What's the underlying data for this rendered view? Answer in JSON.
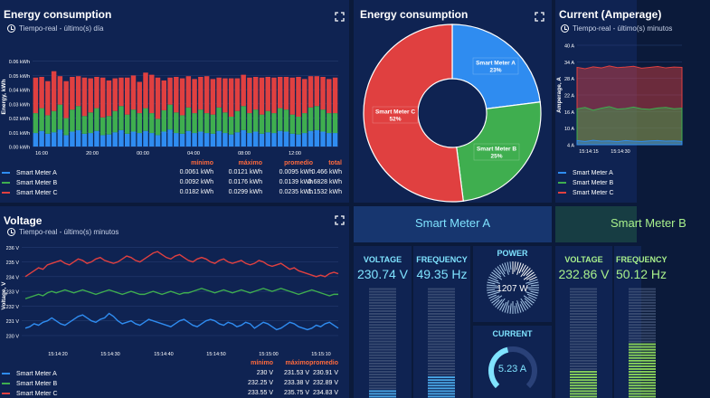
{
  "colors": {
    "meter_a": "#2f8cf0",
    "meter_b": "#3fae4f",
    "meter_c": "#e04040",
    "stat_header": "#ff6a3d",
    "accent_cyan": "#7fe3ff",
    "accent_green": "#a8f08c"
  },
  "energy_bar": {
    "title": "Energy consumption",
    "subtitle": "Tiempo-real - último(s) día",
    "ylabel": "Energy, kWh",
    "stat_headers": [
      "mínimo",
      "máximo",
      "promedio",
      "total"
    ],
    "legend": [
      {
        "name": "Smart Meter A",
        "min": "0.0061 kWh",
        "max": "0.0121 kWh",
        "avg": "0.0095 kWh",
        "total": "0.466 kWh"
      },
      {
        "name": "Smart Meter B",
        "min": "0.0092 kWh",
        "max": "0.0176 kWh",
        "avg": "0.0139 kWh",
        "total": "0.6828 kWh"
      },
      {
        "name": "Smart Meter C",
        "min": "0.0182 kWh",
        "max": "0.0299 kWh",
        "avg": "0.0235 kWh",
        "total": "1.1532 kWh"
      }
    ]
  },
  "energy_pie": {
    "title": "Energy consumption",
    "slices": [
      {
        "name": "Smart Meter A",
        "pct": "23%",
        "value": 23
      },
      {
        "name": "Smart Meter B",
        "pct": "25%",
        "value": 25
      },
      {
        "name": "Smart Meter C",
        "pct": "52%",
        "value": 52
      }
    ]
  },
  "current_panel": {
    "title": "Current (Amperage)",
    "subtitle": "Tiempo-real - último(s) minutos",
    "ylabel": "Amperage, A",
    "legend": [
      "Smart Meter A",
      "Smart Meter B",
      "Smart Meter C"
    ]
  },
  "voltage": {
    "title": "Voltage",
    "subtitle": "Tiempo-real - último(s) minutos",
    "ylabel": "Voltage, V",
    "stat_headers": [
      "mínimo",
      "máximo",
      "promedio"
    ],
    "legend": [
      {
        "name": "Smart Meter A",
        "min": "230 V",
        "max": "231.53 V",
        "avg": "230.91 V"
      },
      {
        "name": "Smart Meter B",
        "min": "232.25 V",
        "max": "233.38 V",
        "avg": "232.89 V"
      },
      {
        "name": "Smart Meter C",
        "min": "233.55 V",
        "max": "235.75 V",
        "avg": "234.83 V"
      }
    ]
  },
  "smart_meter_a": {
    "title": "Smart Meter A",
    "voltage_label": "VOLTAGE",
    "voltage_value": "230.74 V",
    "voltage_level": 0.08,
    "frequency_label": "FREQUENCY",
    "frequency_value": "49.35 Hz",
    "frequency_level": 0.2,
    "power_label": "POWER",
    "power_value": "1207 W",
    "current_label": "CURRENT",
    "current_value": "5.23 A",
    "current_level": 0.45
  },
  "smart_meter_b": {
    "title": "Smart Meter B",
    "voltage_label": "VOLTAGE",
    "voltage_value": "232.86 V",
    "voltage_level": 0.25,
    "frequency_label": "FREQUENCY",
    "frequency_value": "50.12 Hz",
    "frequency_level": 0.5
  },
  "chart_data": [
    {
      "type": "bar",
      "title": "Energy consumption",
      "ylabel": "Energy, kWh",
      "ylim": [
        0,
        0.07
      ],
      "yticks": [
        "0.00 kWh",
        "0.01 kWh",
        "0.02 kWh",
        "0.03 kWh",
        "0.04 kWh",
        "0.05 kWh",
        "0.06 kWh"
      ],
      "xticks": [
        "16:00",
        "20:00",
        "00:00",
        "04:00",
        "08:00",
        "12:00"
      ],
      "stacked": true,
      "series": [
        {
          "name": "Smart Meter A",
          "values": [
            0.0095,
            0.011,
            0.009,
            0.01,
            0.012,
            0.008,
            0.0105,
            0.0115,
            0.009,
            0.0095,
            0.011,
            0.008,
            0.0085,
            0.01,
            0.0115,
            0.009,
            0.0105,
            0.0095,
            0.011,
            0.0095,
            0.008,
            0.0105,
            0.012,
            0.0095,
            0.009,
            0.011,
            0.0095,
            0.0105,
            0.0095,
            0.009,
            0.011,
            0.0095,
            0.0085,
            0.01,
            0.0115,
            0.0095,
            0.0105,
            0.009,
            0.01,
            0.0095,
            0.011,
            0.0105,
            0.009,
            0.0085,
            0.0095,
            0.011,
            0.0115,
            0.0105,
            0.0095,
            0.0095
          ]
        },
        {
          "name": "Smart Meter B",
          "values": [
            0.014,
            0.016,
            0.013,
            0.015,
            0.0175,
            0.012,
            0.0155,
            0.017,
            0.0125,
            0.0145,
            0.016,
            0.0125,
            0.013,
            0.015,
            0.017,
            0.0135,
            0.0155,
            0.014,
            0.016,
            0.014,
            0.0115,
            0.015,
            0.0175,
            0.0145,
            0.013,
            0.0165,
            0.014,
            0.0155,
            0.014,
            0.0135,
            0.0165,
            0.0145,
            0.0125,
            0.015,
            0.017,
            0.014,
            0.0155,
            0.0135,
            0.015,
            0.014,
            0.016,
            0.0155,
            0.0135,
            0.0125,
            0.014,
            0.0165,
            0.017,
            0.0155,
            0.014,
            0.014
          ]
        },
        {
          "name": "Smart Meter C",
          "values": [
            0.025,
            0.022,
            0.024,
            0.028,
            0.02,
            0.026,
            0.023,
            0.021,
            0.027,
            0.024,
            0.022,
            0.028,
            0.025,
            0.023,
            0.02,
            0.026,
            0.024,
            0.022,
            0.025,
            0.027,
            0.029,
            0.021,
            0.019,
            0.025,
            0.026,
            0.022,
            0.024,
            0.023,
            0.026,
            0.025,
            0.021,
            0.024,
            0.027,
            0.023,
            0.022,
            0.025,
            0.023,
            0.026,
            0.024,
            0.025,
            0.022,
            0.023,
            0.026,
            0.028,
            0.024,
            0.022,
            0.021,
            0.023,
            0.024,
            0.025
          ]
        }
      ]
    },
    {
      "type": "pie",
      "title": "Energy consumption",
      "categories": [
        "Smart Meter A",
        "Smart Meter B",
        "Smart Meter C"
      ],
      "values": [
        23,
        25,
        52
      ]
    },
    {
      "type": "area",
      "title": "Current (Amperage)",
      "ylabel": "Amperage, A",
      "ylim": [
        4,
        40
      ],
      "yticks": [
        "4 A",
        "10 A",
        "16 A",
        "22 A",
        "28 A",
        "34 A",
        "40 A"
      ],
      "xticks": [
        "15:14:15",
        "15:14:30"
      ],
      "series": [
        {
          "name": "Smart Meter A",
          "values": [
            5.5,
            5.2,
            5.6,
            5.3,
            5.4,
            5.1,
            5.5,
            5.3,
            5.2,
            5.4,
            5.5,
            5.3,
            5.4,
            5.2
          ]
        },
        {
          "name": "Smart Meter B",
          "values": [
            17,
            17.5,
            16.5,
            17.2,
            17.8,
            16.9,
            17.1,
            17.6,
            17,
            16.8,
            17.3,
            17.5,
            17,
            17.2
          ]
        },
        {
          "name": "Smart Meter C",
          "values": [
            32,
            31.5,
            32.2,
            31.8,
            32.5,
            31.9,
            32.1,
            32.4,
            31.7,
            32,
            32.3,
            31.8,
            32.1,
            32
          ]
        }
      ]
    },
    {
      "type": "line",
      "title": "Voltage",
      "ylabel": "Voltage, V",
      "ylim": [
        229.2,
        236.2
      ],
      "yticks": [
        "230 V",
        "231 V",
        "232 V",
        "233 V",
        "234 V",
        "235 V",
        "236 V"
      ],
      "xticks": [
        "15:14:20",
        "15:14:30",
        "15:14:40",
        "15:14:50",
        "15:15:00",
        "15:15:10"
      ],
      "series": [
        {
          "name": "Smart Meter A",
          "values": [
            230.5,
            230.6,
            230.8,
            230.7,
            230.9,
            231.0,
            231.2,
            231.0,
            230.8,
            230.7,
            230.9,
            231.1,
            231.3,
            231.4,
            231.2,
            231.0,
            230.9,
            231.1,
            231.2,
            231.5,
            231.3,
            231.0,
            230.8,
            230.9,
            231.0,
            230.8,
            230.7,
            230.9,
            231.1,
            231.0,
            230.9,
            230.8,
            230.7,
            230.6,
            230.8,
            231.0,
            231.1,
            230.9,
            230.7,
            230.6,
            230.8,
            231.0,
            231.1,
            231.0,
            230.8,
            230.7,
            230.9,
            230.8,
            230.6,
            230.7,
            230.9,
            230.8,
            230.5,
            230.7,
            230.9,
            230.8,
            230.6,
            230.4,
            230.5,
            230.7,
            230.9,
            230.8,
            230.6,
            230.5,
            230.4,
            230.5,
            230.7,
            230.6,
            230.8,
            230.9,
            230.7,
            230.5
          ]
        },
        {
          "name": "Smart Meter B",
          "values": [
            232.5,
            232.6,
            232.7,
            232.8,
            232.7,
            232.9,
            233.0,
            232.9,
            233.0,
            233.1,
            233.0,
            232.9,
            233.0,
            233.1,
            233.0,
            232.9,
            232.8,
            232.9,
            233.0,
            233.1,
            233.0,
            232.9,
            232.8,
            232.9,
            233.0,
            232.9,
            232.8,
            232.8,
            232.9,
            233.0,
            232.9,
            232.8,
            232.9,
            233.0,
            232.9,
            232.8,
            232.9,
            232.9,
            233.0,
            233.1,
            233.2,
            233.1,
            233.0,
            232.9,
            233.0,
            233.1,
            233.0,
            232.9,
            233.0,
            233.1,
            233.0,
            232.9,
            233.0,
            233.1,
            233.2,
            233.1,
            233.0,
            233.1,
            233.2,
            233.1,
            233.0,
            232.9,
            232.8,
            232.9,
            233.0,
            233.1,
            233.0,
            232.9,
            232.8,
            232.7,
            232.8,
            232.8
          ]
        },
        {
          "name": "Smart Meter C",
          "values": [
            234.0,
            234.2,
            234.4,
            234.6,
            234.5,
            234.8,
            234.9,
            235.0,
            235.1,
            234.9,
            234.8,
            235.0,
            235.2,
            235.1,
            234.9,
            235.0,
            235.2,
            235.3,
            235.1,
            235.0,
            234.9,
            235.0,
            235.2,
            235.4,
            235.3,
            235.1,
            235.0,
            235.2,
            235.4,
            235.6,
            235.7,
            235.5,
            235.3,
            235.2,
            235.4,
            235.5,
            235.3,
            235.1,
            235.0,
            235.2,
            235.3,
            235.2,
            235.0,
            234.9,
            235.1,
            235.2,
            235.0,
            234.9,
            235.0,
            235.1,
            234.9,
            234.8,
            234.9,
            235.1,
            235.0,
            234.8,
            234.7,
            234.8,
            234.9,
            234.7,
            234.5,
            234.6,
            234.4,
            234.3,
            234.2,
            234.1,
            234.0,
            234.1,
            234.0,
            234.2,
            234.3,
            234.2
          ]
        }
      ]
    }
  ]
}
